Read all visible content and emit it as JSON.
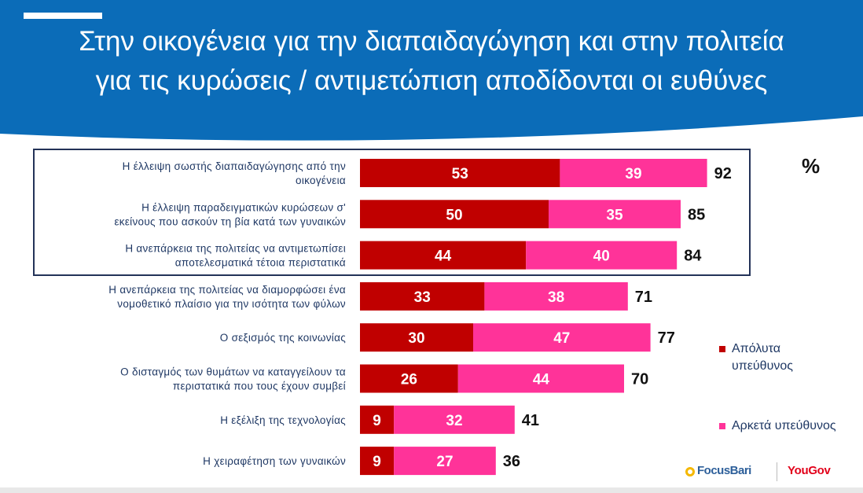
{
  "title_lines": [
    "Στην οικογένεια για την διαπαιδαγώγηση και στην πολιτεία",
    "για τις κυρώσεις / αντιμετώπιση αποδίδονται οι ευθύνες"
  ],
  "percent_sign": "%",
  "colors": {
    "header_blue": "#0b6cb8",
    "series_1": "#c00000",
    "series_2": "#ff3399",
    "highlight_border": "#233258"
  },
  "chart_data": {
    "type": "bar",
    "orientation": "horizontal",
    "stacked": true,
    "categories": [
      [
        "Η έλλειψη σωστής διαπαιδαγώγησης από την",
        "οικογένεια"
      ],
      [
        "Η έλλειψη παραδειγματικών κυρώσεων σ'",
        "εκείνους που ασκούν τη βία κατά των γυναικών"
      ],
      [
        "Η ανεπάρκεια της πολιτείας να αντιμετωπίσει",
        "αποτελεσματικά τέτοια περιστατικά"
      ],
      [
        "Η ανεπάρκεια της πολιτείας να διαμορφώσει ένα",
        "νομοθετικό πλαίσιο για την ισότητα των φύλων"
      ],
      [
        "Ο σεξισμός της κοινωνίας"
      ],
      [
        "Ο δισταγμός των θυμάτων να καταγγείλουν τα",
        "περιστατικά που τους έχουν συμβεί"
      ],
      [
        "Η εξέλιξη της τεχνολογίας"
      ],
      [
        "Η χειραφέτηση των γυναικών"
      ]
    ],
    "series": [
      {
        "name": "Απόλυτα υπεύθυνος",
        "values": [
          53,
          50,
          44,
          33,
          30,
          26,
          9,
          9
        ]
      },
      {
        "name": "Αρκετά υπεύθυνος",
        "values": [
          39,
          35,
          40,
          38,
          47,
          44,
          32,
          27
        ]
      }
    ],
    "totals": [
      92,
      85,
      84,
      71,
      77,
      70,
      41,
      36
    ],
    "highlighted_categories": [
      0,
      1,
      2
    ],
    "legend_position": "right"
  },
  "legend": {
    "item_1_lines": [
      "Απόλυτα",
      "υπεύθυνος"
    ],
    "item_2_lines": [
      "Αρκετά υπεύθυνος"
    ]
  },
  "logos": {
    "focus": "FocusBari",
    "yougov": "YouGov"
  }
}
